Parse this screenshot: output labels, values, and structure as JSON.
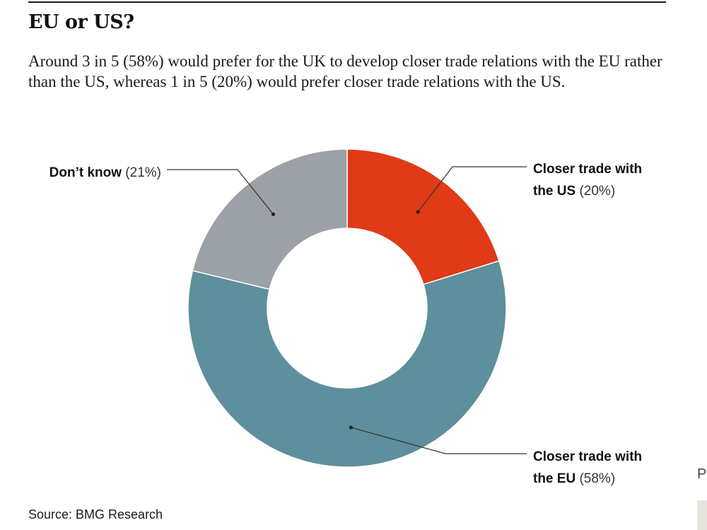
{
  "title": "EU or US?",
  "subtitle": "Around 3 in 5 (58%) would prefer for the UK to develop closer trade relations with the EU rather than the US, whereas 1 in 5 (20%) would prefer closer trade relations with the US.",
  "source": "Source: BMG Research",
  "edge_text": "P",
  "chart_data": {
    "type": "pie",
    "donut": true,
    "slices": [
      {
        "label_lines": [
          "Closer trade with",
          "the US"
        ],
        "value_text": "(20%)",
        "value": 20,
        "color": "#e03a17"
      },
      {
        "label_lines": [
          "Closer trade with",
          "the EU"
        ],
        "value_text": "(58%)",
        "value": 58,
        "color": "#5e8f9c"
      },
      {
        "label_lines": [
          "Don’t know"
        ],
        "value_text": "(21%)",
        "value": 21,
        "color": "#9ba1a6"
      }
    ]
  }
}
